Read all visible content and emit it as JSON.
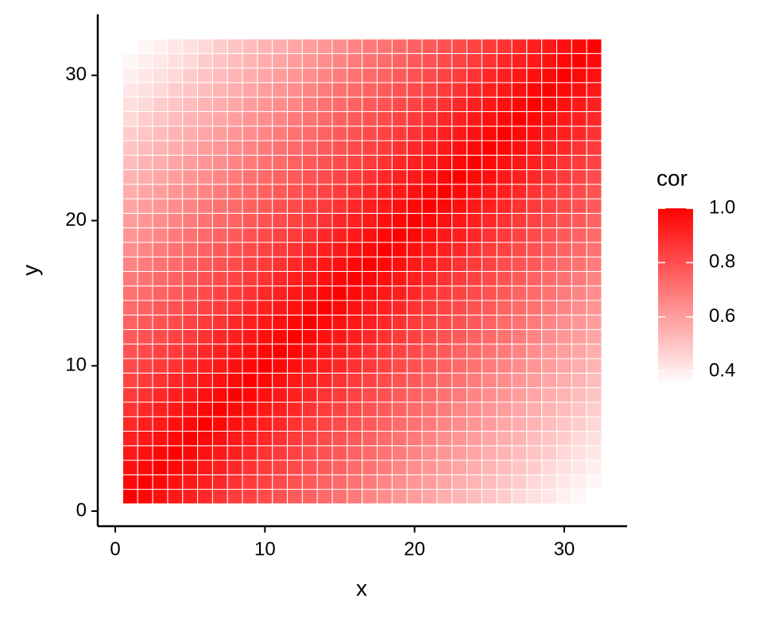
{
  "chart_data": {
    "type": "heatmap",
    "x_label": "x",
    "y_label": "y",
    "legend_title": "cor",
    "x": [
      1,
      2,
      3,
      4,
      5,
      6,
      7,
      8,
      9,
      10,
      11,
      12,
      13,
      14,
      15,
      16,
      17,
      18,
      19,
      20,
      21,
      22,
      23,
      24,
      25,
      26,
      27,
      28,
      29,
      30,
      31,
      32
    ],
    "y": [
      1,
      2,
      3,
      4,
      5,
      6,
      7,
      8,
      9,
      10,
      11,
      12,
      13,
      14,
      15,
      16,
      17,
      18,
      19,
      20,
      21,
      22,
      23,
      24,
      25,
      26,
      27,
      28,
      29,
      30,
      31,
      32
    ],
    "values": [
      [
        1,
        0.98,
        0.96,
        0.94,
        0.92,
        0.9,
        0.87,
        0.85,
        0.83,
        0.81,
        0.79,
        0.77,
        0.75,
        0.73,
        0.71,
        0.69,
        0.66,
        0.64,
        0.62,
        0.6,
        0.58,
        0.56,
        0.54,
        0.52,
        0.5,
        0.48,
        0.45,
        0.43,
        0.41,
        0.39,
        0.37,
        0.35
      ],
      [
        0.98,
        1,
        0.98,
        0.96,
        0.94,
        0.92,
        0.9,
        0.87,
        0.85,
        0.83,
        0.81,
        0.79,
        0.77,
        0.75,
        0.73,
        0.71,
        0.69,
        0.66,
        0.64,
        0.62,
        0.6,
        0.58,
        0.56,
        0.54,
        0.52,
        0.5,
        0.48,
        0.45,
        0.43,
        0.41,
        0.39,
        0.37
      ],
      [
        0.96,
        0.98,
        1,
        0.98,
        0.96,
        0.94,
        0.92,
        0.9,
        0.87,
        0.85,
        0.83,
        0.81,
        0.79,
        0.77,
        0.75,
        0.73,
        0.71,
        0.69,
        0.66,
        0.64,
        0.62,
        0.6,
        0.58,
        0.56,
        0.54,
        0.52,
        0.5,
        0.48,
        0.45,
        0.43,
        0.41,
        0.39
      ],
      [
        0.94,
        0.96,
        0.98,
        1,
        0.98,
        0.96,
        0.94,
        0.92,
        0.9,
        0.87,
        0.85,
        0.83,
        0.81,
        0.79,
        0.77,
        0.75,
        0.73,
        0.71,
        0.69,
        0.66,
        0.64,
        0.62,
        0.6,
        0.58,
        0.56,
        0.54,
        0.52,
        0.5,
        0.48,
        0.45,
        0.43,
        0.41
      ],
      [
        0.92,
        0.94,
        0.96,
        0.98,
        1,
        0.98,
        0.96,
        0.94,
        0.92,
        0.9,
        0.87,
        0.85,
        0.83,
        0.81,
        0.79,
        0.77,
        0.75,
        0.73,
        0.71,
        0.69,
        0.66,
        0.64,
        0.62,
        0.6,
        0.58,
        0.56,
        0.54,
        0.52,
        0.5,
        0.48,
        0.45,
        0.43
      ],
      [
        0.9,
        0.92,
        0.94,
        0.96,
        0.98,
        1,
        0.98,
        0.96,
        0.94,
        0.92,
        0.9,
        0.87,
        0.85,
        0.83,
        0.81,
        0.79,
        0.77,
        0.75,
        0.73,
        0.71,
        0.69,
        0.66,
        0.64,
        0.62,
        0.6,
        0.58,
        0.56,
        0.54,
        0.52,
        0.5,
        0.48,
        0.45
      ],
      [
        0.87,
        0.9,
        0.92,
        0.94,
        0.96,
        0.98,
        1,
        0.98,
        0.96,
        0.94,
        0.92,
        0.9,
        0.87,
        0.85,
        0.83,
        0.81,
        0.79,
        0.77,
        0.75,
        0.73,
        0.71,
        0.69,
        0.66,
        0.64,
        0.62,
        0.6,
        0.58,
        0.56,
        0.54,
        0.52,
        0.5,
        0.48
      ],
      [
        0.85,
        0.87,
        0.9,
        0.92,
        0.94,
        0.96,
        0.98,
        1,
        0.98,
        0.96,
        0.94,
        0.92,
        0.9,
        0.87,
        0.85,
        0.83,
        0.81,
        0.79,
        0.77,
        0.75,
        0.73,
        0.71,
        0.69,
        0.66,
        0.64,
        0.62,
        0.6,
        0.58,
        0.56,
        0.54,
        0.52,
        0.5
      ],
      [
        0.83,
        0.85,
        0.87,
        0.9,
        0.92,
        0.94,
        0.96,
        0.98,
        1,
        0.98,
        0.96,
        0.94,
        0.92,
        0.9,
        0.87,
        0.85,
        0.83,
        0.81,
        0.79,
        0.77,
        0.75,
        0.73,
        0.71,
        0.69,
        0.66,
        0.64,
        0.62,
        0.6,
        0.58,
        0.56,
        0.54,
        0.52
      ],
      [
        0.81,
        0.83,
        0.85,
        0.87,
        0.9,
        0.92,
        0.94,
        0.96,
        0.98,
        1,
        0.98,
        0.96,
        0.94,
        0.92,
        0.9,
        0.87,
        0.85,
        0.83,
        0.81,
        0.79,
        0.77,
        0.75,
        0.73,
        0.71,
        0.69,
        0.66,
        0.64,
        0.62,
        0.6,
        0.58,
        0.56,
        0.54
      ],
      [
        0.79,
        0.81,
        0.83,
        0.85,
        0.87,
        0.9,
        0.92,
        0.94,
        0.96,
        0.98,
        1,
        0.98,
        0.96,
        0.94,
        0.92,
        0.9,
        0.87,
        0.85,
        0.83,
        0.81,
        0.79,
        0.77,
        0.75,
        0.73,
        0.71,
        0.69,
        0.66,
        0.64,
        0.62,
        0.6,
        0.58,
        0.56
      ],
      [
        0.77,
        0.79,
        0.81,
        0.83,
        0.85,
        0.87,
        0.9,
        0.92,
        0.94,
        0.96,
        0.98,
        1,
        0.98,
        0.96,
        0.94,
        0.92,
        0.9,
        0.87,
        0.85,
        0.83,
        0.81,
        0.79,
        0.77,
        0.75,
        0.73,
        0.71,
        0.69,
        0.66,
        0.64,
        0.62,
        0.6,
        0.58
      ],
      [
        0.75,
        0.77,
        0.79,
        0.81,
        0.83,
        0.85,
        0.87,
        0.9,
        0.92,
        0.94,
        0.96,
        0.98,
        1,
        0.98,
        0.96,
        0.94,
        0.92,
        0.9,
        0.87,
        0.85,
        0.83,
        0.81,
        0.79,
        0.77,
        0.75,
        0.73,
        0.71,
        0.69,
        0.66,
        0.64,
        0.62,
        0.6
      ],
      [
        0.73,
        0.75,
        0.77,
        0.79,
        0.81,
        0.83,
        0.85,
        0.87,
        0.9,
        0.92,
        0.94,
        0.96,
        0.98,
        1,
        0.98,
        0.96,
        0.94,
        0.92,
        0.9,
        0.87,
        0.85,
        0.83,
        0.81,
        0.79,
        0.77,
        0.75,
        0.73,
        0.71,
        0.69,
        0.66,
        0.64,
        0.62
      ],
      [
        0.71,
        0.73,
        0.75,
        0.77,
        0.79,
        0.81,
        0.83,
        0.85,
        0.87,
        0.9,
        0.92,
        0.94,
        0.96,
        0.98,
        1,
        0.98,
        0.96,
        0.94,
        0.92,
        0.9,
        0.87,
        0.85,
        0.83,
        0.81,
        0.79,
        0.77,
        0.75,
        0.73,
        0.71,
        0.69,
        0.66,
        0.64
      ],
      [
        0.69,
        0.71,
        0.73,
        0.75,
        0.77,
        0.79,
        0.81,
        0.83,
        0.85,
        0.87,
        0.9,
        0.92,
        0.94,
        0.96,
        0.98,
        1,
        0.98,
        0.96,
        0.94,
        0.92,
        0.9,
        0.87,
        0.85,
        0.83,
        0.81,
        0.79,
        0.77,
        0.75,
        0.73,
        0.71,
        0.69,
        0.66
      ],
      [
        0.66,
        0.69,
        0.71,
        0.73,
        0.75,
        0.77,
        0.79,
        0.81,
        0.83,
        0.85,
        0.87,
        0.9,
        0.92,
        0.94,
        0.96,
        0.98,
        1,
        0.98,
        0.96,
        0.94,
        0.92,
        0.9,
        0.87,
        0.85,
        0.83,
        0.81,
        0.79,
        0.77,
        0.75,
        0.73,
        0.71,
        0.69
      ],
      [
        0.64,
        0.66,
        0.69,
        0.71,
        0.73,
        0.75,
        0.77,
        0.79,
        0.81,
        0.83,
        0.85,
        0.87,
        0.9,
        0.92,
        0.94,
        0.96,
        0.98,
        1,
        0.98,
        0.96,
        0.94,
        0.92,
        0.9,
        0.87,
        0.85,
        0.83,
        0.81,
        0.79,
        0.77,
        0.75,
        0.73,
        0.71
      ],
      [
        0.62,
        0.64,
        0.66,
        0.69,
        0.71,
        0.73,
        0.75,
        0.77,
        0.79,
        0.81,
        0.83,
        0.85,
        0.87,
        0.9,
        0.92,
        0.94,
        0.96,
        0.98,
        1,
        0.98,
        0.96,
        0.94,
        0.92,
        0.9,
        0.87,
        0.85,
        0.83,
        0.81,
        0.79,
        0.77,
        0.75,
        0.73
      ],
      [
        0.6,
        0.62,
        0.64,
        0.66,
        0.69,
        0.71,
        0.73,
        0.75,
        0.77,
        0.79,
        0.81,
        0.83,
        0.85,
        0.87,
        0.9,
        0.92,
        0.94,
        0.96,
        0.98,
        1,
        0.98,
        0.96,
        0.94,
        0.92,
        0.9,
        0.87,
        0.85,
        0.83,
        0.81,
        0.79,
        0.77,
        0.75
      ],
      [
        0.58,
        0.6,
        0.62,
        0.64,
        0.66,
        0.69,
        0.71,
        0.73,
        0.75,
        0.77,
        0.79,
        0.81,
        0.83,
        0.85,
        0.87,
        0.9,
        0.92,
        0.94,
        0.96,
        0.98,
        1,
        0.98,
        0.96,
        0.94,
        0.92,
        0.9,
        0.87,
        0.85,
        0.83,
        0.81,
        0.79,
        0.77
      ],
      [
        0.56,
        0.58,
        0.6,
        0.62,
        0.64,
        0.66,
        0.69,
        0.71,
        0.73,
        0.75,
        0.77,
        0.79,
        0.81,
        0.83,
        0.85,
        0.87,
        0.9,
        0.92,
        0.94,
        0.96,
        0.98,
        1,
        0.98,
        0.96,
        0.94,
        0.92,
        0.9,
        0.87,
        0.85,
        0.83,
        0.81,
        0.79
      ],
      [
        0.54,
        0.56,
        0.58,
        0.6,
        0.62,
        0.64,
        0.66,
        0.69,
        0.71,
        0.73,
        0.75,
        0.77,
        0.79,
        0.81,
        0.83,
        0.85,
        0.87,
        0.9,
        0.92,
        0.94,
        0.96,
        0.98,
        1,
        0.98,
        0.96,
        0.94,
        0.92,
        0.9,
        0.87,
        0.85,
        0.83,
        0.81
      ],
      [
        0.52,
        0.54,
        0.56,
        0.58,
        0.6,
        0.62,
        0.64,
        0.66,
        0.69,
        0.71,
        0.73,
        0.75,
        0.77,
        0.79,
        0.81,
        0.83,
        0.85,
        0.87,
        0.9,
        0.92,
        0.94,
        0.96,
        0.98,
        1,
        0.98,
        0.96,
        0.94,
        0.92,
        0.9,
        0.87,
        0.85,
        0.83
      ],
      [
        0.5,
        0.52,
        0.54,
        0.56,
        0.58,
        0.6,
        0.62,
        0.64,
        0.66,
        0.69,
        0.71,
        0.73,
        0.75,
        0.77,
        0.79,
        0.81,
        0.83,
        0.85,
        0.87,
        0.9,
        0.92,
        0.94,
        0.96,
        0.98,
        1,
        0.98,
        0.96,
        0.94,
        0.92,
        0.9,
        0.87,
        0.85
      ],
      [
        0.48,
        0.5,
        0.52,
        0.54,
        0.56,
        0.58,
        0.6,
        0.62,
        0.64,
        0.66,
        0.69,
        0.71,
        0.73,
        0.75,
        0.77,
        0.79,
        0.81,
        0.83,
        0.85,
        0.87,
        0.9,
        0.92,
        0.94,
        0.96,
        0.98,
        1,
        0.98,
        0.96,
        0.94,
        0.92,
        0.9,
        0.87
      ],
      [
        0.45,
        0.48,
        0.5,
        0.52,
        0.54,
        0.56,
        0.58,
        0.6,
        0.62,
        0.64,
        0.66,
        0.69,
        0.71,
        0.73,
        0.75,
        0.77,
        0.79,
        0.81,
        0.83,
        0.85,
        0.87,
        0.9,
        0.92,
        0.94,
        0.96,
        0.98,
        1,
        0.98,
        0.96,
        0.94,
        0.92,
        0.9
      ],
      [
        0.43,
        0.45,
        0.48,
        0.5,
        0.52,
        0.54,
        0.56,
        0.58,
        0.6,
        0.62,
        0.64,
        0.66,
        0.69,
        0.71,
        0.73,
        0.75,
        0.77,
        0.79,
        0.81,
        0.83,
        0.85,
        0.87,
        0.9,
        0.92,
        0.94,
        0.96,
        0.98,
        1,
        0.98,
        0.96,
        0.94,
        0.92
      ],
      [
        0.41,
        0.43,
        0.45,
        0.48,
        0.5,
        0.52,
        0.54,
        0.56,
        0.58,
        0.6,
        0.62,
        0.64,
        0.66,
        0.69,
        0.71,
        0.73,
        0.75,
        0.77,
        0.79,
        0.81,
        0.83,
        0.85,
        0.87,
        0.9,
        0.92,
        0.94,
        0.96,
        0.98,
        1,
        0.98,
        0.96,
        0.94
      ],
      [
        0.39,
        0.41,
        0.43,
        0.45,
        0.48,
        0.5,
        0.52,
        0.54,
        0.56,
        0.58,
        0.6,
        0.62,
        0.64,
        0.66,
        0.69,
        0.71,
        0.73,
        0.75,
        0.77,
        0.79,
        0.81,
        0.83,
        0.85,
        0.87,
        0.9,
        0.92,
        0.94,
        0.96,
        0.98,
        1,
        0.98,
        0.96
      ],
      [
        0.37,
        0.39,
        0.41,
        0.43,
        0.45,
        0.48,
        0.5,
        0.52,
        0.54,
        0.56,
        0.58,
        0.6,
        0.62,
        0.64,
        0.66,
        0.69,
        0.71,
        0.73,
        0.75,
        0.77,
        0.79,
        0.81,
        0.83,
        0.85,
        0.87,
        0.9,
        0.92,
        0.94,
        0.96,
        0.98,
        1,
        0.98
      ],
      [
        0.35,
        0.37,
        0.39,
        0.41,
        0.43,
        0.45,
        0.48,
        0.5,
        0.52,
        0.54,
        0.56,
        0.58,
        0.6,
        0.62,
        0.64,
        0.66,
        0.69,
        0.71,
        0.73,
        0.75,
        0.77,
        0.79,
        0.81,
        0.83,
        0.85,
        0.87,
        0.9,
        0.92,
        0.94,
        0.96,
        0.98,
        1
      ]
    ],
    "xlim": [
      -1.17,
      34.2
    ],
    "ylim": [
      -1.04,
      34.2
    ],
    "xticks": [
      0,
      10,
      20,
      30
    ],
    "yticks": [
      0,
      10,
      20,
      30
    ],
    "colorbar_lim": [
      0.35,
      1
    ],
    "colorbar_ticks": [
      0.4,
      0.6,
      0.8,
      {
        "value": 1,
        "label": "1.0"
      }
    ],
    "low_color": "#FFFFFF",
    "high_color": "#FF0000",
    "tile_border": "#FFFFFF"
  }
}
